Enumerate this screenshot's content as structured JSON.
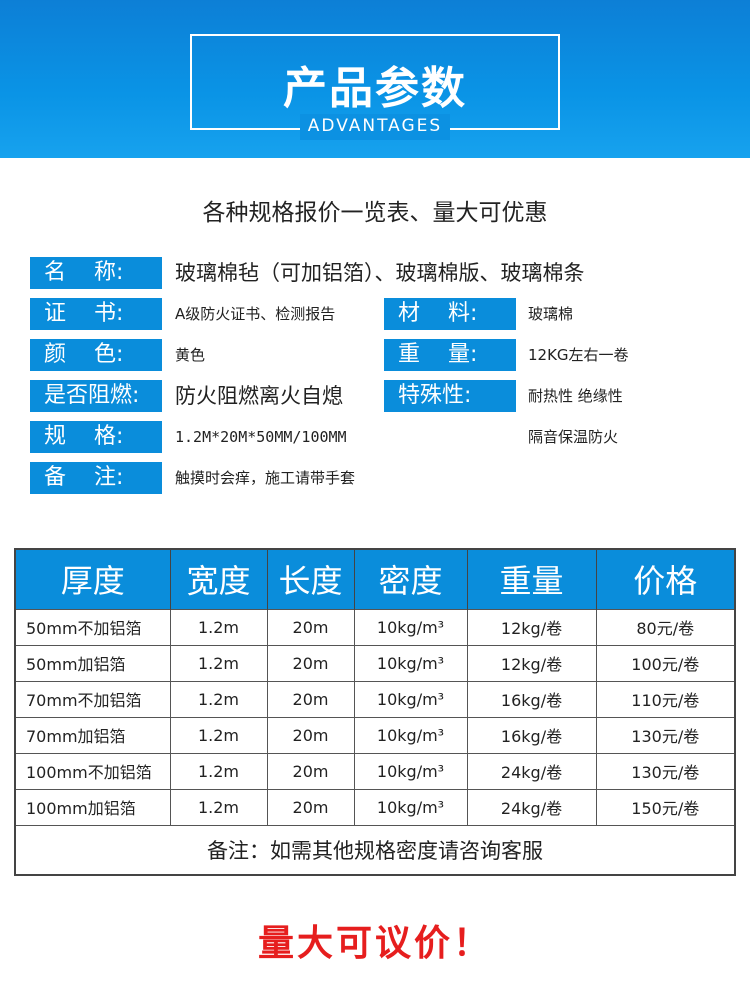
{
  "header": {
    "title": "产品参数",
    "subtitle": "ADVANTAGES"
  },
  "tagline": "各种规格报价一览表、量大可优惠",
  "specs": {
    "name": {
      "label": "名    称:",
      "value": "玻璃棉毡（可加铝箔）、玻璃棉版、玻璃棉条"
    },
    "cert": {
      "label": "证    书:",
      "value": "A级防火证书、检测报告"
    },
    "material": {
      "label": "材    料:",
      "value": "玻璃棉"
    },
    "color": {
      "label": "颜    色:",
      "value": "黄色"
    },
    "weight": {
      "label": "重    量:",
      "value": "12KG左右一卷"
    },
    "flame": {
      "label": "是否阻燃:",
      "value": "防火阻燃离火自熄"
    },
    "special": {
      "label": "特殊性:",
      "value": "耐热性 绝缘性",
      "value2": "隔音保温防火"
    },
    "size": {
      "label": "规    格:",
      "value": "1.2M*20M*50MM/100MM"
    },
    "remark": {
      "label": "备    注:",
      "value": "触摸时会痒，施工请带手套"
    }
  },
  "table": {
    "headers": [
      "厚度",
      "宽度",
      "长度",
      "密度",
      "重量",
      "价格"
    ],
    "rows": [
      [
        "50mm不加铝箔",
        "1.2m",
        "20m",
        "10kg/m³",
        "12kg/卷",
        "80元/卷"
      ],
      [
        "50mm加铝箔",
        "1.2m",
        "20m",
        "10kg/m³",
        "12kg/卷",
        "100元/卷"
      ],
      [
        "70mm不加铝箔",
        "1.2m",
        "20m",
        "10kg/m³",
        "16kg/卷",
        "110元/卷"
      ],
      [
        "70mm加铝箔",
        "1.2m",
        "20m",
        "10kg/m³",
        "16kg/卷",
        "130元/卷"
      ],
      [
        "100mm不加铝箔",
        "1.2m",
        "20m",
        "10kg/m³",
        "24kg/卷",
        "130元/卷"
      ],
      [
        "100mm加铝箔",
        "1.2m",
        "20m",
        "10kg/m³",
        "24kg/卷",
        "150元/卷"
      ]
    ],
    "note": "备注：如需其他规格密度请咨询客服"
  },
  "promo": "量大可议价！",
  "colors": {
    "brand": "#0a8ddb",
    "promo": "#e61e1e"
  }
}
